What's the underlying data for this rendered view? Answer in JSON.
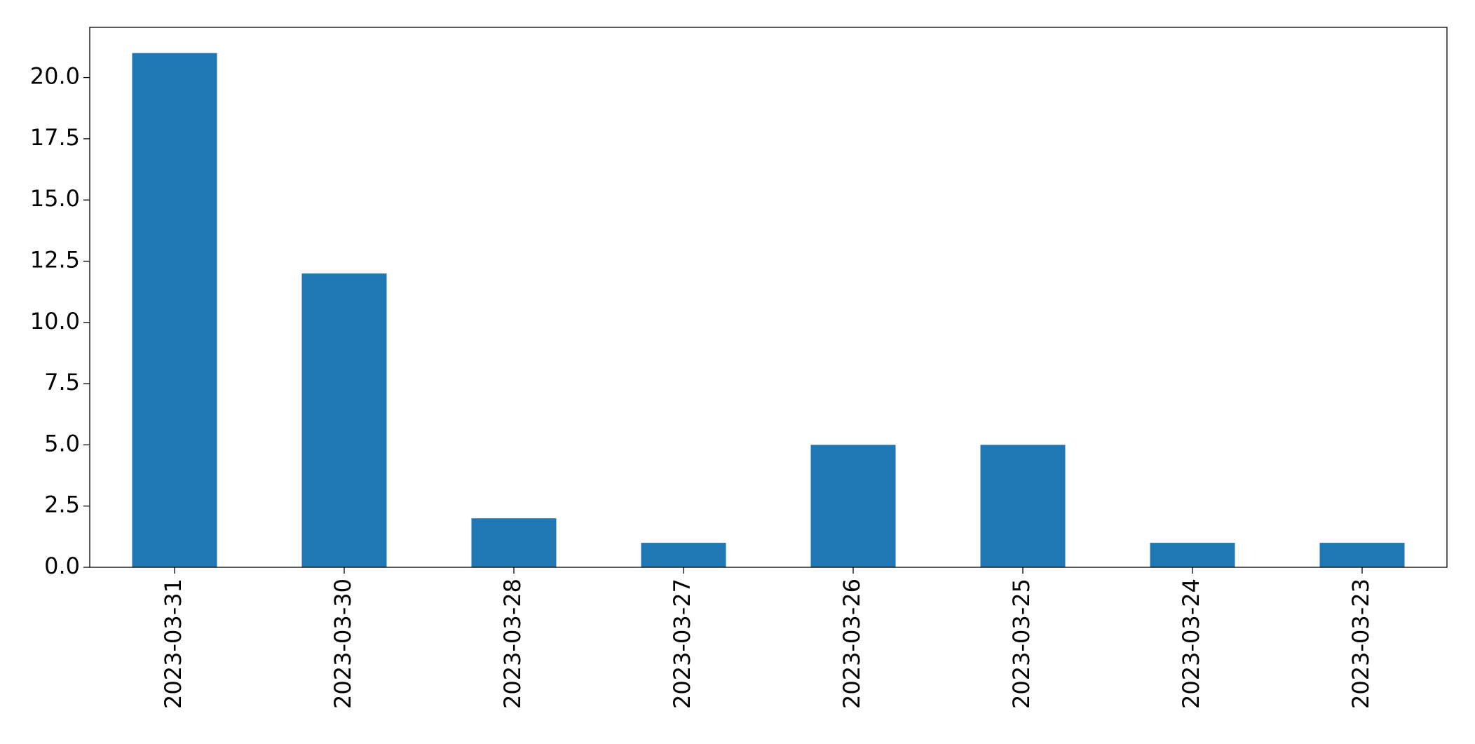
{
  "chart_data": {
    "type": "bar",
    "categories": [
      "2023-03-31",
      "2023-03-30",
      "2023-03-28",
      "2023-03-27",
      "2023-03-26",
      "2023-03-25",
      "2023-03-24",
      "2023-03-23"
    ],
    "values": [
      21,
      12,
      2,
      1,
      5,
      5,
      1,
      1
    ],
    "color": "#1f77b4",
    "ylim": [
      0,
      22.05
    ],
    "yticks": [
      {
        "value": 0,
        "label": "0.0"
      },
      {
        "value": 2.5,
        "label": "2.5"
      },
      {
        "value": 5,
        "label": "5.0"
      },
      {
        "value": 7.5,
        "label": "7.5"
      },
      {
        "value": 10,
        "label": "10.0"
      },
      {
        "value": 12.5,
        "label": "12.5"
      },
      {
        "value": 15,
        "label": "15.0"
      },
      {
        "value": 17.5,
        "label": "17.5"
      },
      {
        "value": 20,
        "label": "20.0"
      }
    ],
    "grid": false
  }
}
